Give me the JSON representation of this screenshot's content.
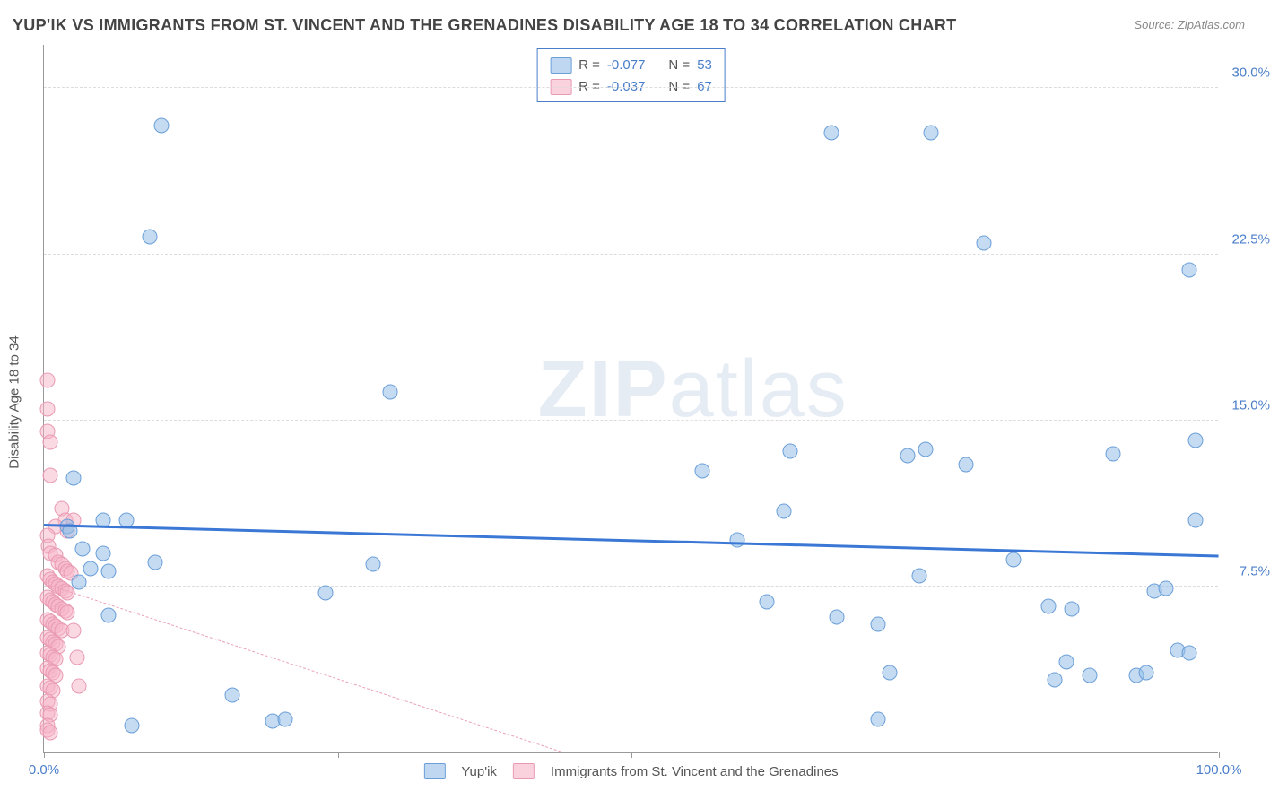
{
  "title": "YUP'IK VS IMMIGRANTS FROM ST. VINCENT AND THE GRENADINES DISABILITY AGE 18 TO 34 CORRELATION CHART",
  "source": "Source: ZipAtlas.com",
  "watermark_a": "ZIP",
  "watermark_b": "atlas",
  "y_axis_title": "Disability Age 18 to 34",
  "chart": {
    "type": "scatter",
    "x_range": [
      0,
      100
    ],
    "y_range": [
      0,
      32
    ],
    "background_color": "#ffffff",
    "grid_color": "#dcdcdc",
    "axis_color": "#999999",
    "tick_label_color": "#4a7ec9",
    "tick_fontsize": 15,
    "y_gridlines": [
      7.5,
      15.0,
      22.5,
      30.0
    ],
    "y_tick_labels": [
      "7.5%",
      "15.0%",
      "22.5%",
      "30.0%"
    ],
    "x_ticks": [
      0,
      25,
      50,
      75,
      100
    ],
    "x_tick_labels_shown": {
      "0": "0.0%",
      "100": "100.0%"
    },
    "point_radius": 8.5
  },
  "series": [
    {
      "name": "Yup'ik",
      "color_fill": "rgba(148,189,231,0.55)",
      "color_stroke": "#6b9fd8",
      "trend_color": "#3b78d6",
      "trend_style": "solid",
      "trend_width": 3,
      "trend": {
        "x1": 0,
        "y1": 10.2,
        "x2": 100,
        "y2": 8.8
      },
      "R": "-0.077",
      "N": "53",
      "points": [
        [
          10,
          28.3
        ],
        [
          9,
          23.3
        ],
        [
          29.5,
          16.3
        ],
        [
          97.5,
          21.8
        ],
        [
          67,
          28.0
        ],
        [
          75.5,
          28.0
        ],
        [
          98,
          14.1
        ],
        [
          98,
          10.5
        ],
        [
          78.5,
          13.0
        ],
        [
          73.5,
          13.4
        ],
        [
          91,
          13.5
        ],
        [
          63.5,
          13.6
        ],
        [
          56,
          12.7
        ],
        [
          2,
          10.2
        ],
        [
          2.2,
          10.0
        ],
        [
          5,
          10.5
        ],
        [
          7,
          10.5
        ],
        [
          9.5,
          8.6
        ],
        [
          4,
          8.3
        ],
        [
          5.5,
          8.2
        ],
        [
          3,
          7.7
        ],
        [
          5.5,
          6.2
        ],
        [
          28,
          8.5
        ],
        [
          59,
          9.6
        ],
        [
          63,
          10.9
        ],
        [
          61.5,
          6.8
        ],
        [
          67.5,
          6.1
        ],
        [
          74.5,
          8.0
        ],
        [
          71,
          5.8
        ],
        [
          72,
          3.6
        ],
        [
          71,
          1.5
        ],
        [
          80,
          23.0
        ],
        [
          82.5,
          8.7
        ],
        [
          85.5,
          6.6
        ],
        [
          87.5,
          6.5
        ],
        [
          87,
          4.1
        ],
        [
          86,
          3.3
        ],
        [
          94.5,
          7.3
        ],
        [
          95.5,
          7.4
        ],
        [
          96.5,
          4.6
        ],
        [
          97.5,
          4.5
        ],
        [
          93,
          3.5
        ],
        [
          93.8,
          3.6
        ],
        [
          89,
          3.5
        ],
        [
          7.5,
          1.2
        ],
        [
          16,
          2.6
        ],
        [
          19.5,
          1.4
        ],
        [
          20.5,
          1.5
        ],
        [
          24,
          7.2
        ],
        [
          5,
          9.0
        ],
        [
          3.3,
          9.2
        ],
        [
          2.5,
          12.4
        ],
        [
          75,
          13.7
        ]
      ]
    },
    {
      "name": "Immigrants from St. Vincent and the Grenadines",
      "color_fill": "rgba(245,180,200,0.5)",
      "color_stroke": "#e99ab3",
      "trend_color": "#e9a2b8",
      "trend_style": "dashed",
      "trend_width": 1.5,
      "trend": {
        "x1": 0,
        "y1": 7.6,
        "x2": 44,
        "y2": 0
      },
      "R": "-0.037",
      "N": "67",
      "points": [
        [
          0.3,
          16.8
        ],
        [
          0.3,
          15.5
        ],
        [
          0.3,
          14.5
        ],
        [
          0.5,
          14.0
        ],
        [
          0.5,
          12.5
        ],
        [
          1.5,
          11.0
        ],
        [
          1.8,
          10.5
        ],
        [
          2.5,
          10.5
        ],
        [
          2.0,
          10.0
        ],
        [
          1.0,
          10.2
        ],
        [
          0.3,
          9.8
        ],
        [
          0.4,
          9.3
        ],
        [
          0.5,
          9.0
        ],
        [
          1.0,
          8.9
        ],
        [
          1.2,
          8.6
        ],
        [
          1.5,
          8.5
        ],
        [
          1.8,
          8.3
        ],
        [
          2.0,
          8.2
        ],
        [
          2.3,
          8.1
        ],
        [
          0.3,
          8.0
        ],
        [
          0.5,
          7.8
        ],
        [
          0.8,
          7.7
        ],
        [
          1.0,
          7.6
        ],
        [
          1.2,
          7.5
        ],
        [
          1.5,
          7.4
        ],
        [
          1.8,
          7.3
        ],
        [
          2.0,
          7.2
        ],
        [
          0.3,
          7.0
        ],
        [
          0.5,
          6.9
        ],
        [
          0.8,
          6.8
        ],
        [
          1.0,
          6.7
        ],
        [
          1.2,
          6.6
        ],
        [
          1.5,
          6.5
        ],
        [
          1.8,
          6.4
        ],
        [
          2.0,
          6.3
        ],
        [
          0.3,
          6.0
        ],
        [
          0.5,
          5.9
        ],
        [
          0.8,
          5.8
        ],
        [
          1.0,
          5.7
        ],
        [
          1.2,
          5.6
        ],
        [
          1.5,
          5.5
        ],
        [
          0.3,
          5.2
        ],
        [
          0.5,
          5.1
        ],
        [
          0.8,
          5.0
        ],
        [
          1.0,
          4.9
        ],
        [
          1.2,
          4.8
        ],
        [
          0.3,
          4.5
        ],
        [
          0.5,
          4.4
        ],
        [
          0.8,
          4.3
        ],
        [
          1.0,
          4.2
        ],
        [
          0.3,
          3.8
        ],
        [
          0.5,
          3.7
        ],
        [
          0.8,
          3.6
        ],
        [
          1.0,
          3.5
        ],
        [
          0.3,
          3.0
        ],
        [
          0.5,
          2.9
        ],
        [
          0.8,
          2.8
        ],
        [
          0.3,
          2.3
        ],
        [
          0.5,
          2.2
        ],
        [
          0.3,
          1.8
        ],
        [
          0.5,
          1.7
        ],
        [
          0.3,
          1.2
        ],
        [
          2.5,
          5.5
        ],
        [
          2.8,
          4.3
        ],
        [
          3.0,
          3.0
        ],
        [
          0.3,
          1.0
        ],
        [
          0.5,
          0.9
        ]
      ]
    }
  ],
  "legend_top": {
    "rows": [
      {
        "swatch": "blue",
        "R_label": "R =",
        "R": "-0.077",
        "N_label": "N =",
        "N": "53"
      },
      {
        "swatch": "pink",
        "R_label": "R =",
        "R": "-0.037",
        "N_label": "N =",
        "N": "67"
      }
    ]
  },
  "legend_bottom": {
    "items": [
      {
        "swatch": "blue",
        "label": "Yup'ik"
      },
      {
        "swatch": "pink",
        "label": "Immigrants from St. Vincent and the Grenadines"
      }
    ]
  }
}
